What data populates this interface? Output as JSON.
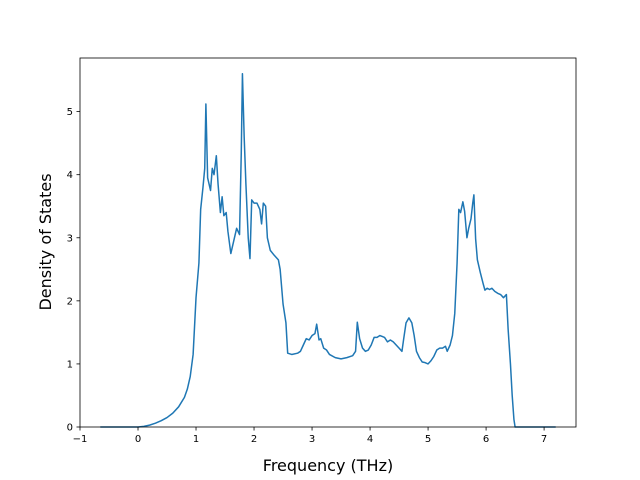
{
  "chart_data": {
    "type": "line",
    "title": "",
    "xlabel": "Frequency (THz)",
    "ylabel": "Density of States",
    "xlim": [
      -1.0,
      7.55
    ],
    "ylim": [
      0,
      5.85
    ],
    "xticks": [
      -1,
      0,
      1,
      2,
      3,
      4,
      5,
      6,
      7
    ],
    "yticks": [
      0,
      1,
      2,
      3,
      4,
      5
    ],
    "grid": false,
    "line_color": "#1f77b4",
    "series": [
      {
        "values": [
          [
            -0.65,
            0.0
          ],
          [
            0.0,
            0.0
          ],
          [
            0.1,
            0.01
          ],
          [
            0.2,
            0.03
          ],
          [
            0.3,
            0.06
          ],
          [
            0.4,
            0.1
          ],
          [
            0.5,
            0.15
          ],
          [
            0.6,
            0.22
          ],
          [
            0.7,
            0.32
          ],
          [
            0.8,
            0.47
          ],
          [
            0.85,
            0.6
          ],
          [
            0.9,
            0.8
          ],
          [
            0.95,
            1.15
          ],
          [
            1.0,
            2.05
          ],
          [
            1.05,
            2.6
          ],
          [
            1.08,
            3.45
          ],
          [
            1.12,
            3.8
          ],
          [
            1.15,
            4.1
          ],
          [
            1.17,
            5.12
          ],
          [
            1.2,
            3.95
          ],
          [
            1.25,
            3.75
          ],
          [
            1.28,
            4.1
          ],
          [
            1.31,
            4.0
          ],
          [
            1.35,
            4.3
          ],
          [
            1.38,
            3.85
          ],
          [
            1.42,
            3.4
          ],
          [
            1.45,
            3.65
          ],
          [
            1.48,
            3.35
          ],
          [
            1.52,
            3.4
          ],
          [
            1.55,
            3.1
          ],
          [
            1.6,
            2.75
          ],
          [
            1.65,
            2.95
          ],
          [
            1.7,
            3.15
          ],
          [
            1.75,
            3.05
          ],
          [
            1.78,
            4.35
          ],
          [
            1.8,
            5.6
          ],
          [
            1.83,
            4.6
          ],
          [
            1.86,
            3.85
          ],
          [
            1.9,
            3.0
          ],
          [
            1.93,
            2.67
          ],
          [
            1.96,
            3.6
          ],
          [
            2.0,
            3.55
          ],
          [
            2.05,
            3.55
          ],
          [
            2.1,
            3.45
          ],
          [
            2.13,
            3.22
          ],
          [
            2.16,
            3.55
          ],
          [
            2.2,
            3.5
          ],
          [
            2.23,
            3.0
          ],
          [
            2.28,
            2.8
          ],
          [
            2.35,
            2.72
          ],
          [
            2.42,
            2.65
          ],
          [
            2.45,
            2.5
          ],
          [
            2.5,
            1.95
          ],
          [
            2.55,
            1.65
          ],
          [
            2.58,
            1.17
          ],
          [
            2.65,
            1.15
          ],
          [
            2.75,
            1.17
          ],
          [
            2.8,
            1.2
          ],
          [
            2.85,
            1.3
          ],
          [
            2.9,
            1.4
          ],
          [
            2.95,
            1.38
          ],
          [
            3.0,
            1.45
          ],
          [
            3.05,
            1.48
          ],
          [
            3.08,
            1.63
          ],
          [
            3.12,
            1.38
          ],
          [
            3.15,
            1.4
          ],
          [
            3.2,
            1.25
          ],
          [
            3.25,
            1.22
          ],
          [
            3.3,
            1.15
          ],
          [
            3.4,
            1.1
          ],
          [
            3.5,
            1.08
          ],
          [
            3.6,
            1.1
          ],
          [
            3.7,
            1.13
          ],
          [
            3.75,
            1.2
          ],
          [
            3.78,
            1.66
          ],
          [
            3.82,
            1.4
          ],
          [
            3.87,
            1.25
          ],
          [
            3.92,
            1.2
          ],
          [
            3.97,
            1.22
          ],
          [
            4.02,
            1.3
          ],
          [
            4.07,
            1.42
          ],
          [
            4.12,
            1.42
          ],
          [
            4.17,
            1.45
          ],
          [
            4.25,
            1.42
          ],
          [
            4.3,
            1.35
          ],
          [
            4.35,
            1.38
          ],
          [
            4.4,
            1.35
          ],
          [
            4.45,
            1.3
          ],
          [
            4.5,
            1.25
          ],
          [
            4.55,
            1.2
          ],
          [
            4.58,
            1.4
          ],
          [
            4.62,
            1.65
          ],
          [
            4.67,
            1.73
          ],
          [
            4.72,
            1.65
          ],
          [
            4.76,
            1.45
          ],
          [
            4.8,
            1.2
          ],
          [
            4.85,
            1.1
          ],
          [
            4.9,
            1.03
          ],
          [
            4.95,
            1.02
          ],
          [
            5.0,
            1.0
          ],
          [
            5.05,
            1.05
          ],
          [
            5.1,
            1.12
          ],
          [
            5.15,
            1.22
          ],
          [
            5.2,
            1.25
          ],
          [
            5.25,
            1.25
          ],
          [
            5.3,
            1.28
          ],
          [
            5.33,
            1.2
          ],
          [
            5.38,
            1.3
          ],
          [
            5.42,
            1.45
          ],
          [
            5.46,
            1.8
          ],
          [
            5.5,
            2.6
          ],
          [
            5.53,
            3.45
          ],
          [
            5.56,
            3.4
          ],
          [
            5.6,
            3.57
          ],
          [
            5.63,
            3.42
          ],
          [
            5.67,
            3.0
          ],
          [
            5.7,
            3.15
          ],
          [
            5.74,
            3.3
          ],
          [
            5.77,
            3.55
          ],
          [
            5.79,
            3.68
          ],
          [
            5.82,
            2.98
          ],
          [
            5.85,
            2.65
          ],
          [
            5.9,
            2.45
          ],
          [
            5.95,
            2.27
          ],
          [
            5.98,
            2.17
          ],
          [
            6.02,
            2.2
          ],
          [
            6.06,
            2.18
          ],
          [
            6.1,
            2.2
          ],
          [
            6.15,
            2.15
          ],
          [
            6.2,
            2.12
          ],
          [
            6.25,
            2.1
          ],
          [
            6.3,
            2.05
          ],
          [
            6.35,
            2.1
          ],
          [
            6.38,
            1.55
          ],
          [
            6.42,
            1.0
          ],
          [
            6.45,
            0.5
          ],
          [
            6.48,
            0.12
          ],
          [
            6.5,
            0.0
          ],
          [
            7.2,
            0.0
          ]
        ]
      }
    ]
  }
}
